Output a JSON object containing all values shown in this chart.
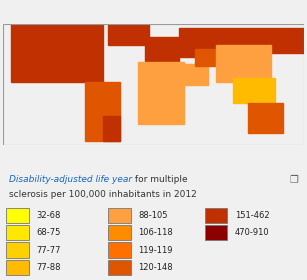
{
  "title_blue": "Disability-adjusted life year",
  "title_black_1": " for multiple",
  "title_black_2": "sclerosis per 100,000 inhabitants in 2012",
  "legend_items": [
    {
      "label": "32-68",
      "color": "#FFFF00"
    },
    {
      "label": "68-75",
      "color": "#FFE800"
    },
    {
      "label": "77-77",
      "color": "#FFD000"
    },
    {
      "label": "77-88",
      "color": "#FFBB00"
    },
    {
      "label": "88-105",
      "color": "#FFA040"
    },
    {
      "label": "106-118",
      "color": "#FF8C00"
    },
    {
      "label": "119-119",
      "color": "#FF7000"
    },
    {
      "label": "120-148",
      "color": "#E05500"
    },
    {
      "label": "151-462",
      "color": "#C03000"
    },
    {
      "label": "470-910",
      "color": "#8B0000"
    }
  ],
  "bg_color": "#f0f0f0",
  "ocean_color": "#ffffff",
  "border_color": "#aaaaaa",
  "daly_data": {
    "USA": 400,
    "CAN": 400,
    "GBR": 400,
    "IRL": 400,
    "NOR": 400,
    "SWE": 400,
    "FIN": 400,
    "DNK": 400,
    "ISL": 400,
    "NLD": 400,
    "BEL": 400,
    "LUX": 400,
    "DEU": 400,
    "CHE": 400,
    "AUT": 400,
    "FRA": 400,
    "HUN": 300,
    "CZE": 300,
    "POL": 300,
    "SVK": 300,
    "ESP": 300,
    "PRT": 300,
    "ITA": 300,
    "GRC": 300,
    "ROU": 200,
    "BGR": 200,
    "HRV": 200,
    "SRB": 200,
    "BIH": 200,
    "MNE": 200,
    "ALB": 200,
    "MKD": 200,
    "SVN": 300,
    "EST": 300,
    "LVA": 300,
    "LTU": 300,
    "BLR": 300,
    "UKR": 300,
    "MDA": 200,
    "RUS": 400,
    "TUR": 200,
    "IRN": 130,
    "IRQ": 100,
    "SYR": 100,
    "SAU": 100,
    "YEM": 80,
    "OMN": 80,
    "ARE": 100,
    "KWT": 100,
    "QAT": 100,
    "BHR": 100,
    "JOR": 100,
    "LBN": 130,
    "ISR": 200,
    "PSE": 100,
    "MAR": 80,
    "DZA": 80,
    "TUN": 80,
    "LBY": 80,
    "EGY": 80,
    "MRT": 77,
    "MLI": 77,
    "NER": 77,
    "TCD": 77,
    "SDN": 77,
    "ETH": 68,
    "SOM": 68,
    "KEN": 68,
    "TZA": 68,
    "MOZ": 68,
    "ZAF": 80,
    "NAM": 77,
    "BWA": 77,
    "ZWE": 68,
    "ZMB": 68,
    "AGO": 68,
    "COD": 68,
    "CAF": 68,
    "CMR": 68,
    "NGA": 68,
    "GHA": 68,
    "CIV": 68,
    "SEN": 68,
    "GIN": 68,
    "SLE": 68,
    "LBR": 68,
    "BEN": 68,
    "TGO": 68,
    "BFA": 68,
    "CHN": 88,
    "MNG": 88,
    "JPN": 105,
    "KOR": 100,
    "PRK": 80,
    "IND": 80,
    "PAK": 80,
    "BGD": 77,
    "NPL": 77,
    "LKA": 80,
    "MMR": 77,
    "THA": 80,
    "VNM": 77,
    "KHM": 68,
    "LAO": 68,
    "MYS": 80,
    "IDN": 68,
    "PHL": 68,
    "KAZ": 130,
    "UZB": 120,
    "TKM": 120,
    "KGZ": 120,
    "TJK": 120,
    "AFG": 88,
    "AZE": 130,
    "ARM": 130,
    "GEO": 130,
    "BRA": 130,
    "ARG": 150,
    "CHL": 150,
    "URY": 150,
    "PRY": 100,
    "BOL": 88,
    "PER": 88,
    "ECU": 88,
    "COL": 105,
    "VEN": 120,
    "GUY": 88,
    "SUR": 88,
    "MEX": 150,
    "GTM": 100,
    "BLZ": 88,
    "HND": 88,
    "SLV": 88,
    "NIC": 88,
    "CRI": 100,
    "PAN": 100,
    "CUB": 130,
    "DOM": 100,
    "HTI": 77,
    "JAM": 88,
    "AUS": 130,
    "NZL": 150,
    "PNG": 68,
    "SGP": 88,
    "BRN": 80,
    "GMB": 68,
    "GNB": 68,
    "CPV": 68,
    "DJI": 68,
    "ERI": 68,
    "SSD": 68,
    "UGA": 68,
    "RWA": 68,
    "BDI": 68,
    "MDG": 68,
    "COM": 68,
    "MUS": 80,
    "SWZ": 68,
    "LSO": 68,
    "GNQ": 68,
    "GAB": 68,
    "COG": 68,
    "CYP": 200,
    "MLT": 200,
    "XKX": 200,
    "TLS": 68,
    "FJI": 68
  }
}
